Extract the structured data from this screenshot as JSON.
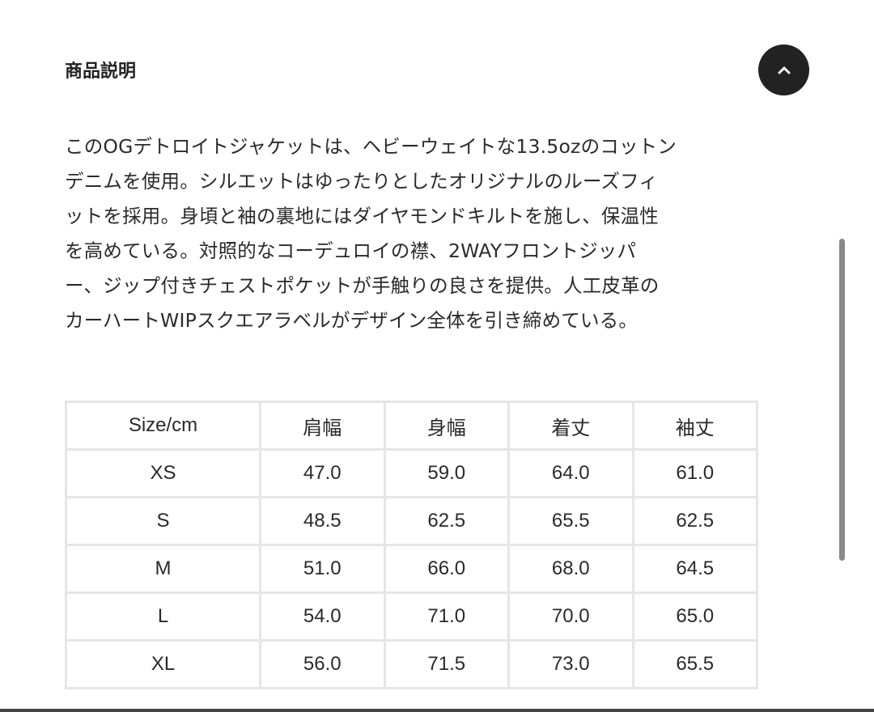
{
  "section": {
    "title": "商品説明"
  },
  "scroll_top_button": {
    "icon": "chevron-up-icon"
  },
  "description": {
    "lines": [
      "このOGデトロイトジャケットは、ヘビーウェイトな13.5ozのコットン",
      "デニムを使用。シルエットはゆったりとしたオリジナルのルーズフィ",
      "ットを採用。身頃と袖の裏地にはダイヤモンドキルトを施し、保温性",
      "を高めている。対照的なコーデュロイの襟、2WAYフロントジッパ",
      "ー、ジップ付きチェストポケットが手触りの良さを提供。人工皮革の",
      "カーハートWIPスクエアラベルがデザイン全体を引き締めている。"
    ]
  },
  "size_table": {
    "headers": [
      "Size/cm",
      "肩幅",
      "身幅",
      "着丈",
      "袖丈"
    ],
    "rows": [
      [
        "XS",
        "47.0",
        "59.0",
        "64.0",
        "61.0"
      ],
      [
        "S",
        "48.5",
        "62.5",
        "65.5",
        "62.5"
      ],
      [
        "M",
        "51.0",
        "66.0",
        "68.0",
        "64.5"
      ],
      [
        "L",
        "54.0",
        "71.0",
        "70.0",
        "65.0"
      ],
      [
        "XL",
        "56.0",
        "71.5",
        "73.0",
        "65.5"
      ]
    ]
  }
}
